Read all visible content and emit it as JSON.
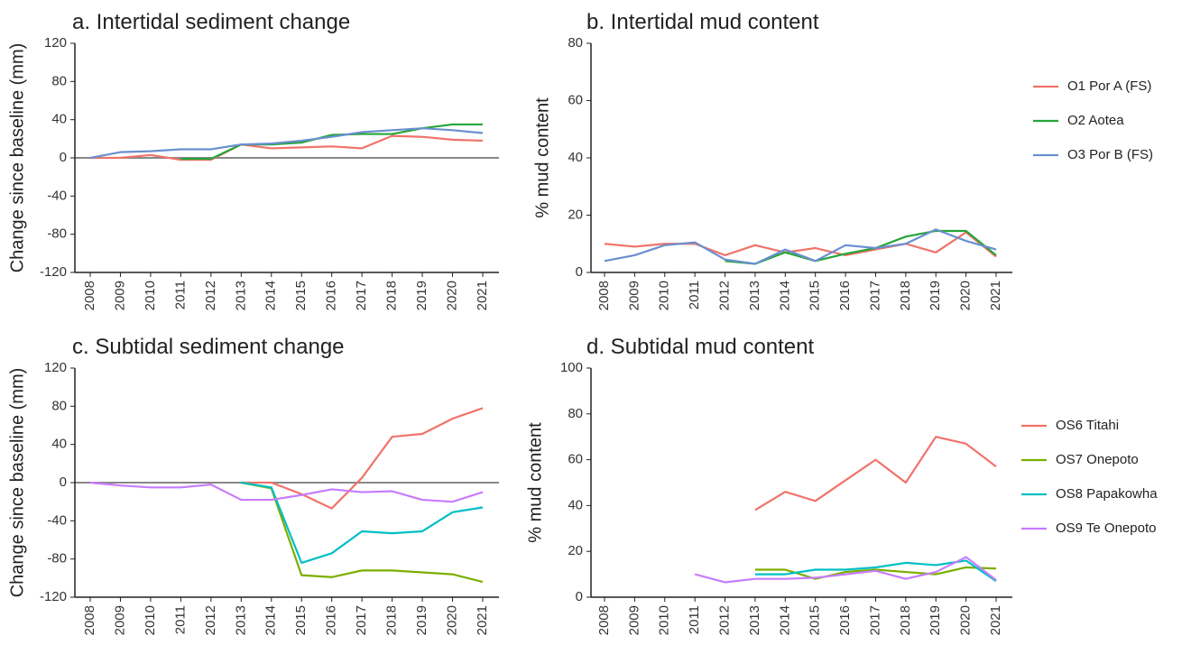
{
  "chart_data": [
    {
      "type": "line",
      "title": "a. Intertidal sediment change",
      "ylabel": "Change since baseline (mm)",
      "categories": [
        "2008",
        "2009",
        "2010",
        "2011",
        "2012",
        "2013",
        "2014",
        "2015",
        "2016",
        "2017",
        "2018",
        "2019",
        "2020",
        "2021"
      ],
      "ylim": [
        -120,
        120
      ],
      "yticks": [
        -120,
        -80,
        -40,
        0,
        40,
        80,
        120
      ],
      "hline": 0,
      "series": [
        {
          "color": "#f0736a",
          "values": [
            0,
            0,
            3,
            -2,
            -2,
            14,
            10,
            11,
            12,
            10,
            23,
            22,
            19,
            18
          ]
        },
        {
          "color": "#25a53a",
          "values": [
            null,
            null,
            null,
            -1,
            -1,
            14,
            14,
            16,
            24,
            25,
            25,
            31,
            35,
            35
          ]
        },
        {
          "color": "#6a8fd0",
          "values": [
            0,
            6,
            7,
            9,
            9,
            14,
            15,
            18,
            22,
            27,
            29,
            31,
            29,
            26
          ]
        }
      ]
    },
    {
      "type": "line",
      "title": "b. Intertidal mud content",
      "ylabel": "% mud content",
      "categories": [
        "2008",
        "2009",
        "2010",
        "2011",
        "2012",
        "2013",
        "2014",
        "2015",
        "2016",
        "2017",
        "2018",
        "2019",
        "2020",
        "2021"
      ],
      "ylim": [
        0,
        80
      ],
      "yticks": [
        0,
        20,
        40,
        60,
        80
      ],
      "legend": "right",
      "series": [
        {
          "name": "O1 Por A (FS)",
          "color": "#f0736a",
          "values": [
            10,
            9,
            10,
            10,
            6,
            9.5,
            7,
            8.5,
            6,
            8,
            10,
            7,
            14,
            5.5
          ]
        },
        {
          "name": "O2 Aotea",
          "color": "#25a53a",
          "values": [
            null,
            null,
            null,
            null,
            4,
            3,
            7,
            4,
            6.5,
            8.5,
            12.5,
            14.5,
            14.5,
            6
          ]
        },
        {
          "name": "O3 Por B (FS)",
          "color": "#6a8fd0",
          "values": [
            4,
            6,
            9.5,
            10.5,
            4.5,
            3,
            8,
            4,
            9.5,
            8.5,
            10,
            15,
            11,
            8
          ]
        }
      ]
    },
    {
      "type": "line",
      "title": "c. Subtidal sediment change",
      "ylabel": "Change since baseline (mm)",
      "categories": [
        "2008",
        "2009",
        "2010",
        "2011",
        "2012",
        "2013",
        "2014",
        "2015",
        "2016",
        "2017",
        "2018",
        "2019",
        "2020",
        "2021"
      ],
      "ylim": [
        -120,
        120
      ],
      "yticks": [
        -120,
        -80,
        -40,
        0,
        40,
        80,
        120
      ],
      "hline": 0,
      "series": [
        {
          "color": "#f0736a",
          "values": [
            null,
            null,
            null,
            null,
            null,
            0,
            0,
            -12,
            -27,
            5,
            48,
            51,
            67,
            78
          ]
        },
        {
          "color": "#7cae00",
          "values": [
            null,
            null,
            null,
            null,
            null,
            0,
            -6,
            -97,
            -99,
            -92,
            -92,
            -94,
            -96,
            -104
          ]
        },
        {
          "color": "#00bfc4",
          "values": [
            null,
            null,
            null,
            null,
            null,
            0,
            -5,
            -84,
            -74,
            -51,
            -53,
            -51,
            -31,
            -26
          ]
        },
        {
          "color": "#c77cff",
          "values": [
            0,
            -3,
            -5,
            -5,
            -2,
            -18,
            -18,
            -13,
            -7,
            -10,
            -9,
            -18,
            -20,
            -10
          ]
        }
      ]
    },
    {
      "type": "line",
      "title": "d. Subtidal mud content",
      "ylabel": "% mud content",
      "categories": [
        "2008",
        "2009",
        "2010",
        "2011",
        "2012",
        "2013",
        "2014",
        "2015",
        "2016",
        "2017",
        "2018",
        "2019",
        "2020",
        "2021"
      ],
      "ylim": [
        0,
        100
      ],
      "yticks": [
        0,
        20,
        40,
        60,
        80,
        100
      ],
      "legend": "right",
      "series": [
        {
          "name": "OS6 Titahi",
          "color": "#f0736a",
          "values": [
            null,
            null,
            null,
            null,
            null,
            38,
            46,
            42,
            51,
            60,
            50,
            70,
            67,
            57
          ]
        },
        {
          "name": "OS7 Onepoto",
          "color": "#7cae00",
          "values": [
            null,
            null,
            null,
            null,
            null,
            12,
            12,
            8,
            11,
            12,
            11,
            10,
            13,
            12.5
          ]
        },
        {
          "name": "OS8 Papakowha",
          "color": "#00bfc4",
          "values": [
            null,
            null,
            null,
            null,
            null,
            10,
            10,
            12,
            12,
            13,
            15,
            14,
            16,
            7
          ]
        },
        {
          "name": "OS9 Te Onepoto",
          "color": "#c77cff",
          "values": [
            null,
            null,
            null,
            10,
            6.5,
            8,
            8,
            8.5,
            10,
            11.5,
            8,
            11,
            17.5,
            7.5
          ]
        }
      ]
    }
  ]
}
